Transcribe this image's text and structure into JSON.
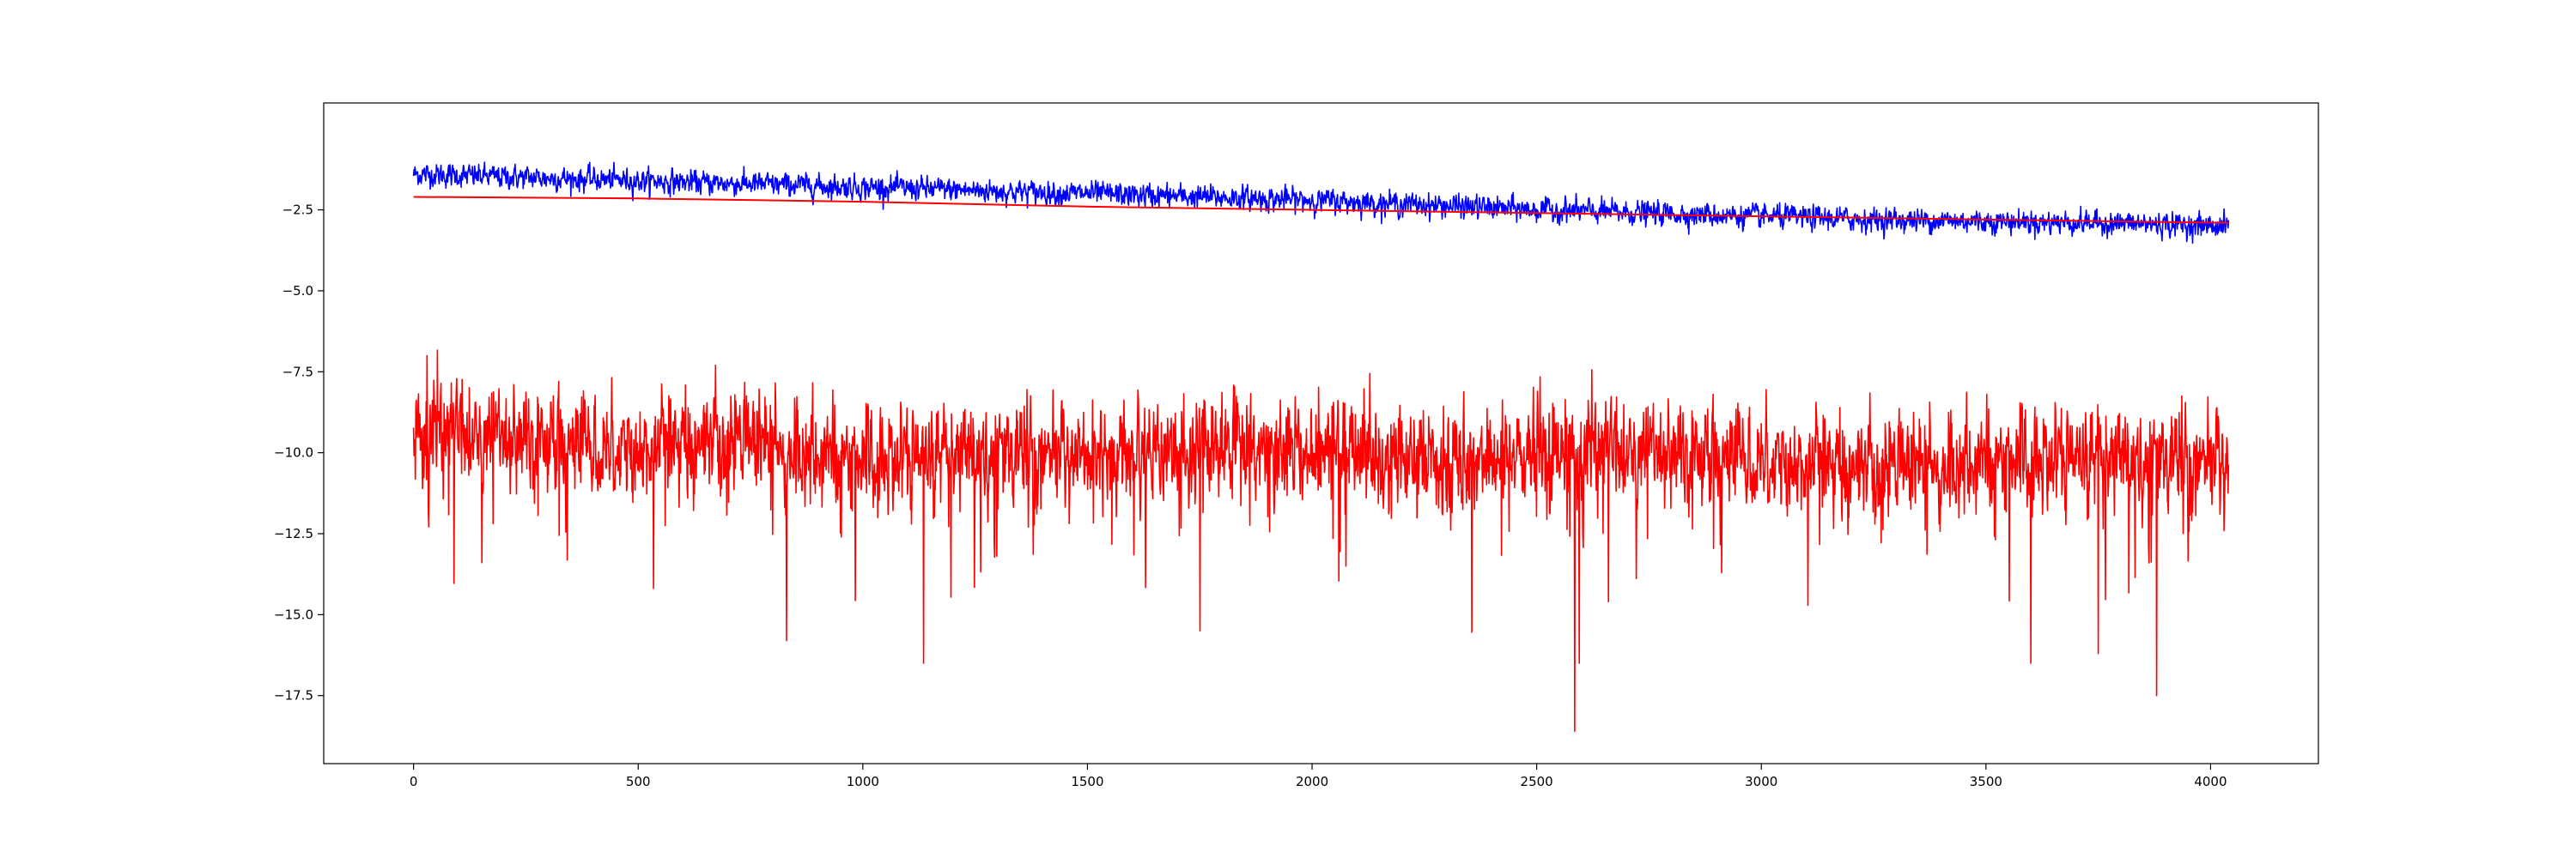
{
  "chart_data": {
    "type": "line",
    "title": "",
    "xlabel": "",
    "ylabel": "",
    "xlim": [
      -200,
      4240
    ],
    "ylim": [
      -19.6,
      0.8
    ],
    "grid": false,
    "legend": "none",
    "x_ticks": [
      0,
      500,
      1000,
      1500,
      2000,
      2500,
      3000,
      3500,
      4000
    ],
    "x_tick_labels": [
      "0",
      "500",
      "1000",
      "1500",
      "2000",
      "2500",
      "3000",
      "3500",
      "4000"
    ],
    "y_ticks": [
      -2.5,
      -5.0,
      -7.5,
      -10.0,
      -12.5,
      -15.0,
      -17.5
    ],
    "y_tick_labels": [
      "−2.5",
      "−5.0",
      "−7.5",
      "−10.0",
      "−12.5",
      "−15.0",
      "−17.5"
    ],
    "series": [
      {
        "color": "#0000ff",
        "description_values": "noisy band trending downward from about -1.4 at x=0 to about -3.0 at x=4040",
        "x": [
          0,
          250,
          500,
          750,
          1000,
          1250,
          1500,
          1750,
          2000,
          2250,
          2500,
          2750,
          3000,
          3250,
          3500,
          3750,
          4040
        ],
        "values": [
          -1.4,
          -1.5,
          -1.6,
          -1.7,
          -1.8,
          -1.9,
          -2.0,
          -2.1,
          -2.2,
          -2.35,
          -2.5,
          -2.6,
          -2.7,
          -2.8,
          -2.85,
          -2.9,
          -3.0
        ],
        "noise_amplitude": 0.3,
        "points": 4040
      },
      {
        "color": "#ff0000",
        "x": [
          0,
          500,
          1000,
          1500,
          2000,
          2500,
          3000,
          3500,
          4040
        ],
        "values": [
          -2.1,
          -2.15,
          -2.25,
          -2.4,
          -2.5,
          -2.6,
          -2.7,
          -2.8,
          -2.9
        ]
      },
      {
        "color": "#ff0000",
        "x": [
          0,
          250,
          500,
          750,
          1000,
          1250,
          1500,
          1750,
          2000,
          2250,
          2500,
          2750,
          3000,
          3250,
          3500,
          3750,
          4040
        ],
        "values": [
          -9.4,
          -9.6,
          -9.8,
          -9.7,
          -10.2,
          -10.0,
          -10.2,
          -9.8,
          -10.0,
          -10.3,
          -10.1,
          -10.0,
          -10.1,
          -10.6,
          -10.2,
          -10.1,
          -10.4
        ],
        "noise_amplitude": 1.3,
        "points": 4040,
        "minimum": {
          "x": 2585,
          "y": -18.6
        },
        "spikes": [
          {
            "x": 30,
            "y": -7.0
          },
          {
            "x": 830,
            "y": -15.8
          },
          {
            "x": 1135,
            "y": -16.5
          },
          {
            "x": 1750,
            "y": -15.5
          },
          {
            "x": 2595,
            "y": -16.5
          },
          {
            "x": 3600,
            "y": -16.5
          },
          {
            "x": 3750,
            "y": -16.2
          },
          {
            "x": 3880,
            "y": -17.5
          }
        ]
      }
    ]
  }
}
